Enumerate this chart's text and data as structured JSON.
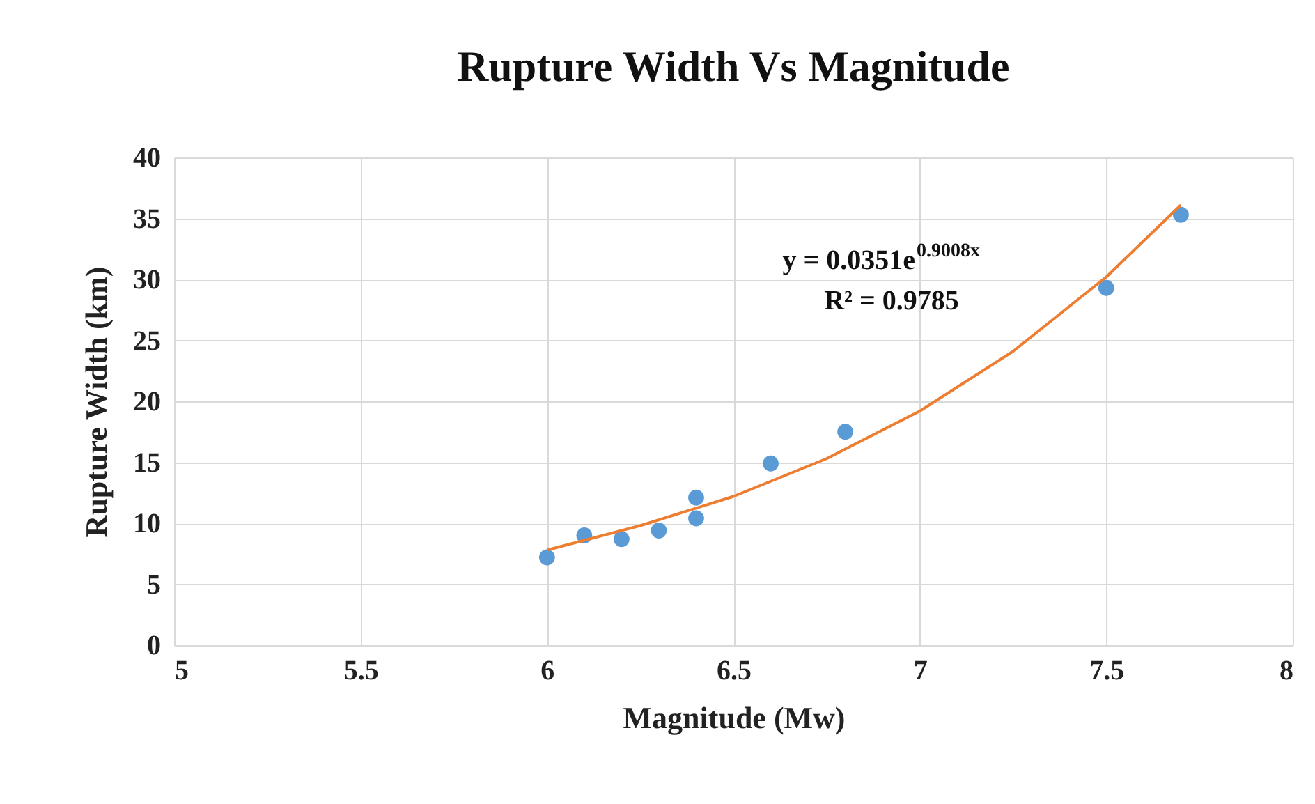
{
  "chart_data": {
    "type": "scatter",
    "title": "Rupture Width Vs Magnitude",
    "xlabel": "Magnitude (Mw)",
    "ylabel": "Rupture Width (km)",
    "xlim": [
      5,
      8
    ],
    "xticks": [
      5,
      5.5,
      6,
      6.5,
      7,
      7.5,
      8
    ],
    "ylim": [
      0,
      40
    ],
    "yticks": [
      0,
      5,
      10,
      15,
      20,
      25,
      30,
      35,
      40
    ],
    "grid": true,
    "series": [
      {
        "color": "#5b9bd5",
        "marker": "circle",
        "x": [
          6.0,
          6.1,
          6.2,
          6.3,
          6.4,
          6.4,
          6.6,
          6.8,
          7.5,
          7.7
        ],
        "values": [
          7.2,
          9.0,
          8.7,
          9.4,
          12.1,
          10.4,
          14.9,
          17.5,
          29.3,
          35.3
        ]
      },
      {
        "type": "line",
        "color": "#ed7d31",
        "marker": "none",
        "x": [
          6.0,
          6.25,
          6.5,
          6.75,
          7.0,
          7.25,
          7.5,
          7.7
        ],
        "values": [
          7.8,
          9.8,
          12.2,
          15.3,
          19.2,
          24.1,
          30.2,
          36.1
        ]
      }
    ],
    "annotations": [
      "y = 0.0351e$^{0.9008x}$",
      "R² = 0.9785"
    ]
  }
}
